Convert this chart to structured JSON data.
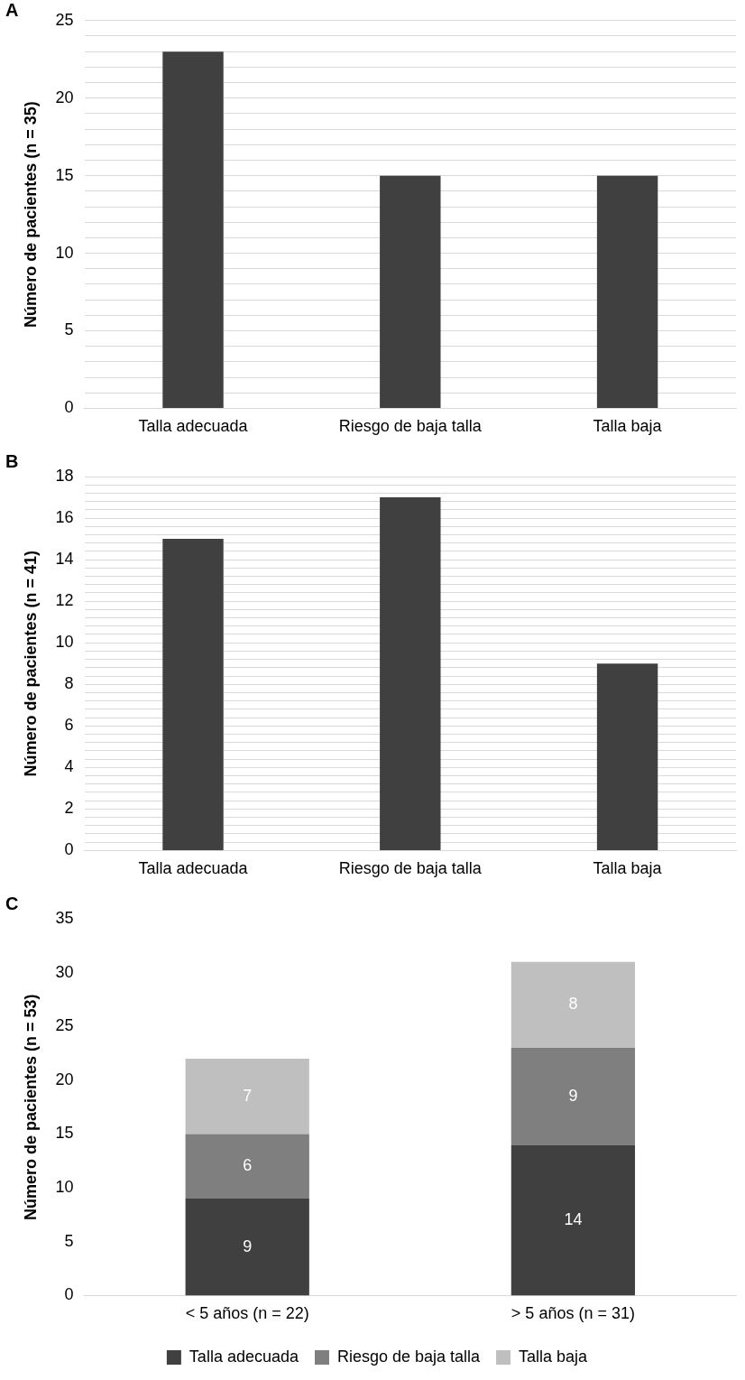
{
  "chart_data": [
    {
      "type": "bar",
      "title": "A",
      "ylabel": "Número de pacientes (n = 35)",
      "categories": [
        "Talla adecuada",
        "Riesgo de baja talla",
        "Talla baja"
      ],
      "values": [
        23,
        15,
        15
      ],
      "color": "#404040",
      "ylim": [
        0,
        25
      ],
      "yticks": [
        0,
        {
          "value": 1,
          "label": null
        },
        {
          "value": 2,
          "label": null
        },
        {
          "value": 3,
          "label": null
        },
        {
          "value": 4,
          "label": null
        },
        5,
        {
          "value": 6,
          "label": null
        },
        {
          "value": 7,
          "label": null
        },
        {
          "value": 8,
          "label": null
        },
        {
          "value": 9,
          "label": null
        },
        10,
        {
          "value": 11,
          "label": null
        },
        {
          "value": 12,
          "label": null
        },
        {
          "value": 13,
          "label": null
        },
        {
          "value": 14,
          "label": null
        },
        15,
        {
          "value": 16,
          "label": null
        },
        {
          "value": 17,
          "label": null
        },
        {
          "value": 18,
          "label": null
        },
        {
          "value": 19,
          "label": null
        },
        20,
        {
          "value": 21,
          "label": null
        },
        {
          "value": 22,
          "label": null
        },
        {
          "value": 23,
          "label": null
        },
        {
          "value": 24,
          "label": null
        },
        25
      ],
      "grid": "y",
      "legend": false
    },
    {
      "type": "bar",
      "title": "B",
      "ylabel": "Número de pacientes (n = 41)",
      "categories": [
        "Talla adecuada",
        "Riesgo de baja talla",
        "Talla baja"
      ],
      "values": [
        15,
        17,
        9
      ],
      "color": "#404040",
      "ylim": [
        0,
        18
      ],
      "yticks": [
        0,
        {
          "value": 0.4,
          "label": null
        },
        {
          "value": 0.8,
          "label": null
        },
        {
          "value": 1.2,
          "label": null
        },
        {
          "value": 1.6,
          "label": null
        },
        2,
        {
          "value": 2.4,
          "label": null
        },
        {
          "value": 2.8,
          "label": null
        },
        {
          "value": 3.2,
          "label": null
        },
        {
          "value": 3.6,
          "label": null
        },
        4,
        {
          "value": 4.4,
          "label": null
        },
        {
          "value": 4.8,
          "label": null
        },
        {
          "value": 5.2,
          "label": null
        },
        {
          "value": 5.6,
          "label": null
        },
        6,
        {
          "value": 6.4,
          "label": null
        },
        {
          "value": 6.8,
          "label": null
        },
        {
          "value": 7.2,
          "label": null
        },
        {
          "value": 7.6,
          "label": null
        },
        8,
        {
          "value": 8.4,
          "label": null
        },
        {
          "value": 8.8,
          "label": null
        },
        {
          "value": 9.2,
          "label": null
        },
        {
          "value": 9.6,
          "label": null
        },
        10,
        {
          "value": 10.4,
          "label": null
        },
        {
          "value": 10.8,
          "label": null
        },
        {
          "value": 11.2,
          "label": null
        },
        {
          "value": 11.6,
          "label": null
        },
        12,
        {
          "value": 12.4,
          "label": null
        },
        {
          "value": 12.8,
          "label": null
        },
        {
          "value": 13.2,
          "label": null
        },
        {
          "value": 13.6,
          "label": null
        },
        14,
        {
          "value": 14.4,
          "label": null
        },
        {
          "value": 14.8,
          "label": null
        },
        {
          "value": 15.2,
          "label": null
        },
        {
          "value": 15.6,
          "label": null
        },
        16,
        {
          "value": 16.4,
          "label": null
        },
        {
          "value": 16.8,
          "label": null
        },
        {
          "value": 17.2,
          "label": null
        },
        {
          "value": 17.6,
          "label": null
        },
        18
      ],
      "grid": "y",
      "legend": false
    },
    {
      "type": "bar",
      "title": "C",
      "ylabel": "Número de pacientes (n = 53)",
      "categories": [
        "< 5 años (n = 22)",
        "> 5 años (n = 31)"
      ],
      "stacked": true,
      "series": [
        {
          "name": "Talla adecuada",
          "color": "#404040",
          "values": [
            9,
            14
          ]
        },
        {
          "name": "Riesgo de baja talla",
          "color": "#7f7f7f",
          "values": [
            6,
            9
          ]
        },
        {
          "name": "Talla baja",
          "color": "#bfbfbf",
          "values": [
            7,
            8
          ]
        }
      ],
      "ylim": [
        0,
        35
      ],
      "yticks": [
        0,
        5,
        10,
        15,
        20,
        25,
        30,
        35
      ],
      "data_labels": true,
      "legend": "bottom"
    }
  ]
}
